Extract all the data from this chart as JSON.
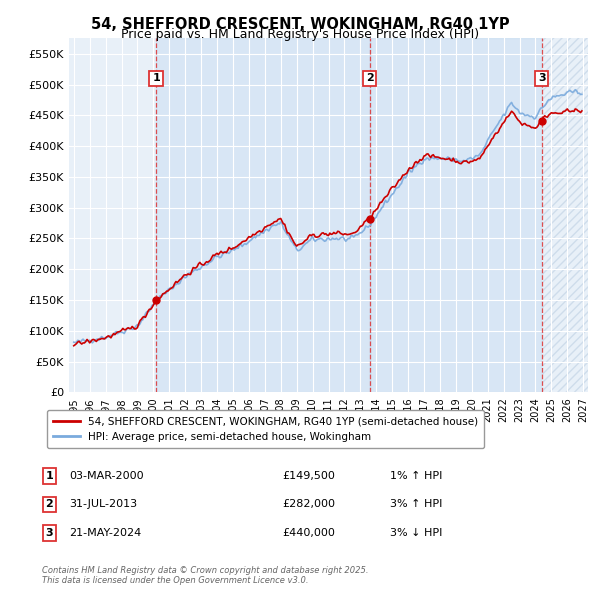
{
  "title": "54, SHEFFORD CRESCENT, WOKINGHAM, RG40 1YP",
  "subtitle": "Price paid vs. HM Land Registry's House Price Index (HPI)",
  "ylim": [
    0,
    575000
  ],
  "yticks": [
    0,
    50000,
    100000,
    150000,
    200000,
    250000,
    300000,
    350000,
    400000,
    450000,
    500000,
    550000
  ],
  "ytick_labels": [
    "£0",
    "£50K",
    "£100K",
    "£150K",
    "£200K",
    "£250K",
    "£300K",
    "£350K",
    "£400K",
    "£450K",
    "£500K",
    "£550K"
  ],
  "xmin_year": 1994.7,
  "xmax_year": 2027.3,
  "xticks": [
    1995,
    1996,
    1997,
    1998,
    1999,
    2000,
    2001,
    2002,
    2003,
    2004,
    2005,
    2006,
    2007,
    2008,
    2009,
    2010,
    2011,
    2012,
    2013,
    2014,
    2015,
    2016,
    2017,
    2018,
    2019,
    2020,
    2021,
    2022,
    2023,
    2024,
    2025,
    2026,
    2027
  ],
  "sales": [
    {
      "year": 2000.17,
      "price": 149500,
      "label": "1"
    },
    {
      "year": 2013.58,
      "price": 282000,
      "label": "2"
    },
    {
      "year": 2024.39,
      "price": 440000,
      "label": "3"
    }
  ],
  "sale_info": [
    {
      "label": "1",
      "date": "03-MAR-2000",
      "price": "£149,500",
      "hpi": "1% ↑ HPI"
    },
    {
      "label": "2",
      "date": "31-JUL-2013",
      "price": "£282,000",
      "hpi": "3% ↑ HPI"
    },
    {
      "label": "3",
      "date": "21-MAY-2024",
      "price": "£440,000",
      "hpi": "3% ↓ HPI"
    }
  ],
  "legend_line1": "54, SHEFFORD CRESCENT, WOKINGHAM, RG40 1YP (semi-detached house)",
  "legend_line2": "HPI: Average price, semi-detached house, Wokingham",
  "footer": "Contains HM Land Registry data © Crown copyright and database right 2025.\nThis data is licensed under the Open Government Licence v3.0.",
  "bg_color": "#e8f0f8",
  "shade_color": "#dce9f7",
  "hatch_color": "#c8d8e8",
  "grid_color": "#ffffff",
  "line_color_red": "#cc0000",
  "line_color_blue": "#7aaadd",
  "vline_color": "#dd3333"
}
